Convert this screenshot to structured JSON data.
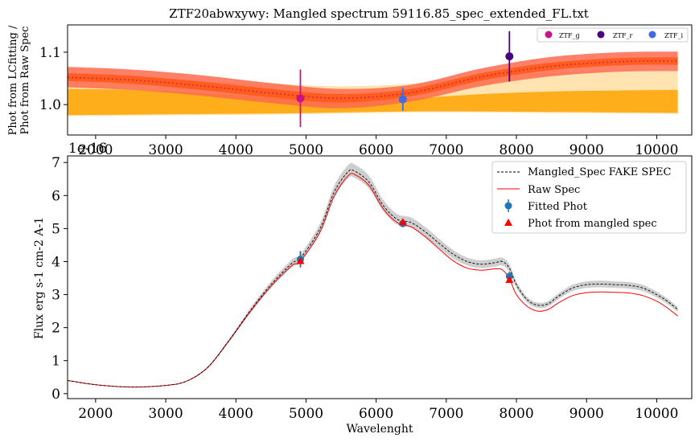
{
  "top_title": "ZTF20abwxywy: Mangled spectrum 59116.85_spec_extended_FL.txt",
  "top_ylabel_line1": "Phot from LCfitting /",
  "top_ylabel_line2": "Phot from Raw Spec",
  "top_offset_label": "1e-16",
  "bottom_ylabel": "Flux erg s-1 cm-2 A-1",
  "bottom_xlabel": "Wavelenght",
  "colors": {
    "ztf_g": "#c71585",
    "ztf_i": "#4b0082",
    "ztf_r": "#4169e1",
    "fitted_phot": "#1f77b4",
    "mangled_phot": "#ff0000",
    "raw_spec": "#ff0000",
    "mangled_spec": "#000000",
    "red_band": "#ff6a4d",
    "orange_band": "#ffa500",
    "light_band": "#ffd27f",
    "dark_band": "#ff5a1a",
    "ratio_line": "#e02040"
  },
  "chart_data": [
    {
      "type": "line",
      "title": "ZTF20abwxywy: Mangled spectrum 59116.85_spec_extended_FL.txt",
      "xlabel": "",
      "ylabel": "Phot from LCfitting / Phot from Raw Spec",
      "xlim": [
        1600,
        10500
      ],
      "ylim": [
        0.942,
        1.152
      ],
      "xticks": [
        2000,
        3000,
        4000,
        5000,
        6000,
        7000,
        8000,
        9000,
        10000
      ],
      "yticks": [
        1.0,
        1.1
      ],
      "ytick_labels": [
        "1.0",
        "1.1"
      ],
      "legend": {
        "placement": "top-right",
        "entries": [
          "ZTF_g",
          "ZTF_i",
          "ZTF_r"
        ]
      },
      "ratio_curve": {
        "x": [
          1600,
          2500,
          3500,
          4500,
          5500,
          6500,
          7500,
          8500,
          9500,
          10300
        ],
        "y": [
          1.052,
          1.047,
          1.036,
          1.022,
          1.012,
          1.023,
          1.053,
          1.073,
          1.082,
          1.083
        ]
      },
      "bands": [
        {
          "kind": "light",
          "upper": [
            1.055,
            1.05,
            1.045,
            1.04,
            1.035,
            1.04,
            1.055,
            1.06,
            1.065,
            1.065
          ],
          "lower": [
            0.978,
            0.979,
            0.98,
            0.981,
            0.983,
            0.985,
            0.985,
            0.984,
            0.983,
            0.982
          ]
        },
        {
          "kind": "orange",
          "upper": [
            1.03,
            1.028,
            1.022,
            1.015,
            1.01,
            1.012,
            1.02,
            1.025,
            1.027,
            1.028
          ],
          "lower": [
            0.98,
            0.981,
            0.982,
            0.983,
            0.985,
            0.987,
            0.987,
            0.986,
            0.985,
            0.984
          ]
        },
        {
          "kind": "red",
          "upper": [
            1.072,
            1.067,
            1.056,
            1.041,
            1.03,
            1.038,
            1.069,
            1.091,
            1.1,
            1.101
          ],
          "lower": [
            1.033,
            1.028,
            1.017,
            1.003,
            0.993,
            1.006,
            1.035,
            1.054,
            1.063,
            1.064
          ]
        },
        {
          "kind": "dark",
          "upper": [
            1.06,
            1.055,
            1.044,
            1.03,
            1.02,
            1.03,
            1.06,
            1.08,
            1.089,
            1.09
          ],
          "lower": [
            1.045,
            1.04,
            1.028,
            1.014,
            1.004,
            1.016,
            1.046,
            1.066,
            1.075,
            1.076
          ]
        }
      ],
      "points": [
        {
          "name": "ZTF_g",
          "x": 4920,
          "y": 1.012,
          "err": 0.055,
          "color": "#c71585"
        },
        {
          "name": "ZTF_r",
          "x": 6380,
          "y": 1.01,
          "err": 0.022,
          "color": "#4169e1"
        },
        {
          "name": "ZTF_i",
          "x": 7900,
          "y": 1.092,
          "err": 0.048,
          "color": "#4b0082"
        }
      ]
    },
    {
      "type": "line",
      "xlabel": "Wavelenght",
      "ylabel": "Flux erg s-1 cm-2 A-1",
      "y_scale_label": "1e-16",
      "xlim": [
        1600,
        10500
      ],
      "ylim": [
        -0.15,
        7.2
      ],
      "xticks": [
        2000,
        3000,
        4000,
        5000,
        6000,
        7000,
        8000,
        9000,
        10000
      ],
      "yticks": [
        0,
        1,
        2,
        3,
        4,
        5,
        6,
        7
      ],
      "legend": {
        "placement": "top-right",
        "entries": [
          "Mangled_Spec FAKE SPEC",
          "Raw Spec",
          "Fitted Phot",
          "Phot from mangled spec"
        ]
      },
      "series": [
        {
          "name": "Mangled_Spec FAKE SPEC",
          "style": "dashed",
          "color": "#000000",
          "x": [
            1600,
            2000,
            2500,
            3000,
            3300,
            3600,
            3900,
            4200,
            4500,
            4800,
            4920,
            5200,
            5400,
            5600,
            5700,
            5900,
            6100,
            6300,
            6500,
            6700,
            6900,
            7100,
            7300,
            7500,
            7700,
            7800,
            7900,
            8000,
            8150,
            8300,
            8450,
            8600,
            8800,
            9000,
            9200,
            9400,
            9600,
            9800,
            10000,
            10150,
            10300
          ],
          "y": [
            0.4,
            0.27,
            0.2,
            0.25,
            0.38,
            0.8,
            1.6,
            2.5,
            3.3,
            3.95,
            4.1,
            5.0,
            6.1,
            6.72,
            6.73,
            6.4,
            5.7,
            5.28,
            5.18,
            4.9,
            4.55,
            4.22,
            4.0,
            3.92,
            3.97,
            4.0,
            3.8,
            3.3,
            2.85,
            2.68,
            2.72,
            2.95,
            3.2,
            3.3,
            3.32,
            3.3,
            3.28,
            3.2,
            3.0,
            2.8,
            2.55
          ]
        },
        {
          "name": "Raw Spec",
          "style": "solid",
          "color": "#ff0000",
          "x": [
            1600,
            2000,
            2500,
            3000,
            3300,
            3600,
            3900,
            4200,
            4500,
            4800,
            4920,
            5200,
            5400,
            5600,
            5700,
            5900,
            6100,
            6300,
            6500,
            6700,
            6900,
            7100,
            7300,
            7500,
            7700,
            7800,
            7900,
            8000,
            8150,
            8300,
            8450,
            8600,
            8800,
            9000,
            9200,
            9400,
            9600,
            9800,
            10000,
            10150,
            10300
          ],
          "y": [
            0.4,
            0.27,
            0.2,
            0.25,
            0.38,
            0.8,
            1.6,
            2.47,
            3.25,
            3.88,
            4.02,
            4.9,
            5.98,
            6.6,
            6.63,
            6.3,
            5.6,
            5.18,
            5.05,
            4.75,
            4.38,
            4.02,
            3.8,
            3.74,
            3.78,
            3.75,
            3.48,
            3.0,
            2.65,
            2.5,
            2.55,
            2.75,
            2.97,
            3.06,
            3.08,
            3.07,
            3.05,
            2.97,
            2.8,
            2.6,
            2.35
          ]
        }
      ],
      "fitted_phot": {
        "x": [
          4920,
          6380,
          7900
        ],
        "y": [
          4.07,
          5.15,
          3.55
        ],
        "err": [
          0.25,
          0.1,
          0.14
        ]
      },
      "phot_from_mangled_spec": {
        "x": [
          4920,
          6380,
          7900
        ],
        "y": [
          4.02,
          5.2,
          3.45
        ]
      }
    }
  ]
}
